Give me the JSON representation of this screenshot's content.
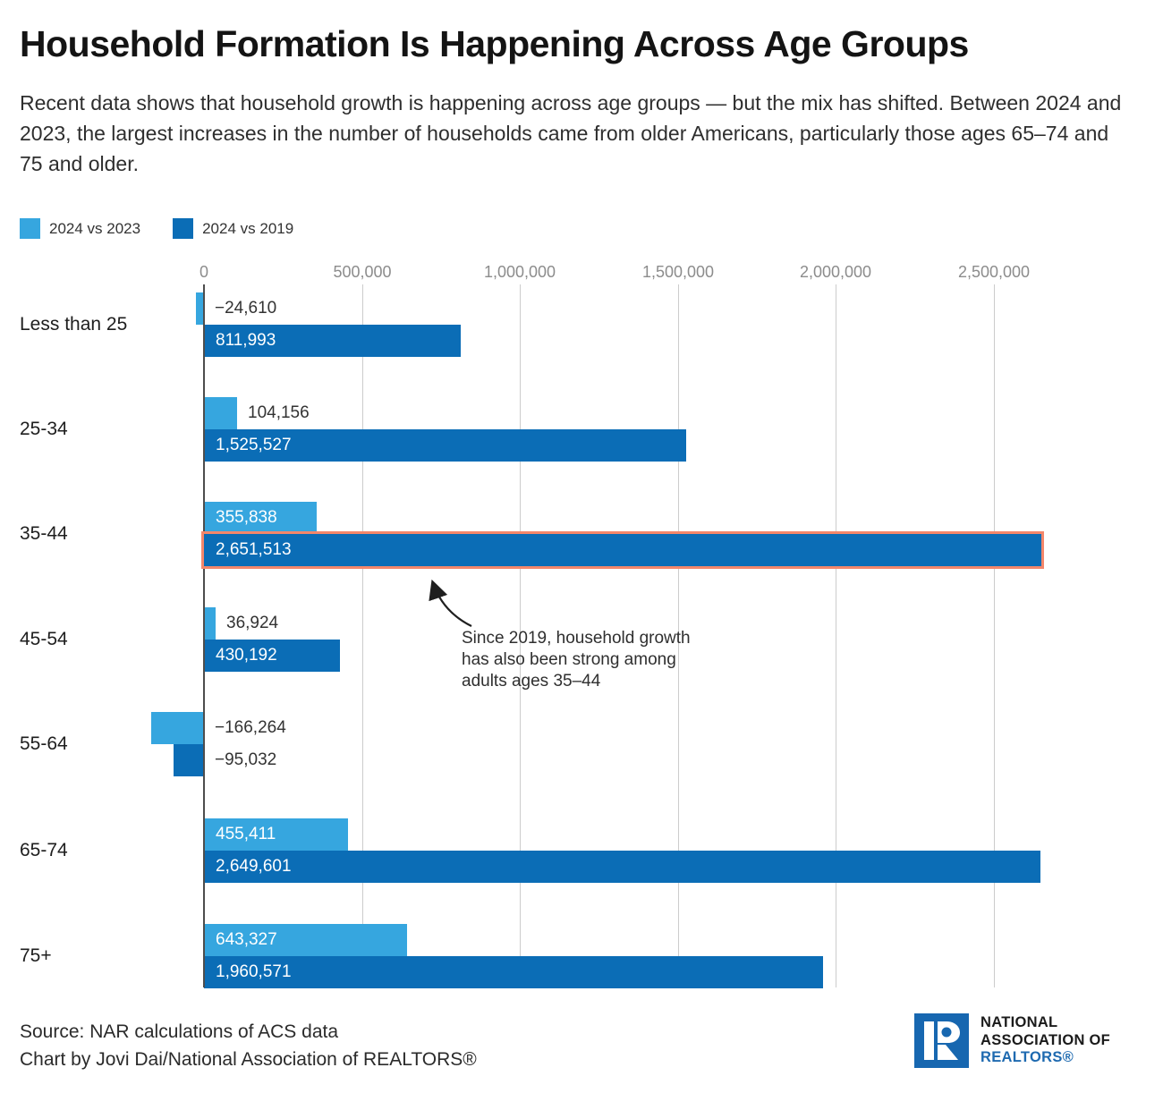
{
  "title": "Household Formation Is Happening Across Age Groups",
  "subtitle": "Recent data shows that household growth is happening across age groups — but the mix has shifted. Between 2024 and 2023, the largest increases in the number of households came from older Americans, particularly those ages 65–74 and 75 and older.",
  "legend": [
    {
      "label": "2024 vs 2023",
      "color": "#36a6df"
    },
    {
      "label": "2024 vs 2019",
      "color": "#0b6db6"
    }
  ],
  "chart_data": {
    "type": "bar",
    "orientation": "horizontal",
    "title": "Household Formation Is Happening Across Age Groups",
    "categories": [
      "Less than 25",
      "25-34",
      "35-44",
      "45-54",
      "55-64",
      "65-74",
      "75+"
    ],
    "series": [
      {
        "name": "2024 vs 2023",
        "color": "#36a6df",
        "values": [
          -24610,
          104156,
          355838,
          36924,
          -166264,
          455411,
          643327
        ],
        "labels": [
          "−24,610",
          "104,156",
          "355,838",
          "36,924",
          "−166,264",
          "455,411",
          "643,327"
        ]
      },
      {
        "name": "2024 vs 2019",
        "color": "#0b6db6",
        "values": [
          811993,
          1525527,
          2651513,
          430192,
          -95032,
          2649601,
          1960571
        ],
        "labels": [
          "811,993",
          "1,525,527",
          "2,651,513",
          "430,192",
          "−95,032",
          "2,649,601",
          "1,960,571"
        ]
      }
    ],
    "x_ticks": [
      0,
      500000,
      1000000,
      1500000,
      2000000,
      2500000
    ],
    "x_tick_labels": [
      "0",
      "500,000",
      "1,000,000",
      "1,500,000",
      "2,000,000",
      "2,500,000"
    ],
    "xlim": [
      -200000,
      2700000
    ],
    "grid": true,
    "legend_position": "top-left",
    "highlight": {
      "category": "35-44",
      "series": "2024 vs 2019",
      "border_color": "#f4876b"
    },
    "annotation": {
      "text_lines": [
        "Since 2019, household growth",
        "has also been strong among",
        "adults ages 35–44"
      ],
      "points_to": "35-44 / 2024 vs 2019 bar"
    }
  },
  "source": {
    "line1": "Source: NAR calculations of ACS data",
    "line2": "Chart by Jovi Dai/National Association of REALTORS®"
  },
  "logo": {
    "line1": "NATIONAL",
    "line2": "ASSOCIATION OF",
    "line3": "REALTORS®",
    "blue": "#1767b0"
  },
  "colors": {
    "series_light_blue": "#36a6df",
    "series_dark_blue": "#0b6db6",
    "highlight_border": "#f4876b",
    "grid": "#cccccc",
    "zero_line": "#4d4d4d",
    "tick_text": "#8c8c8c",
    "logo_blue": "#1767b0"
  }
}
